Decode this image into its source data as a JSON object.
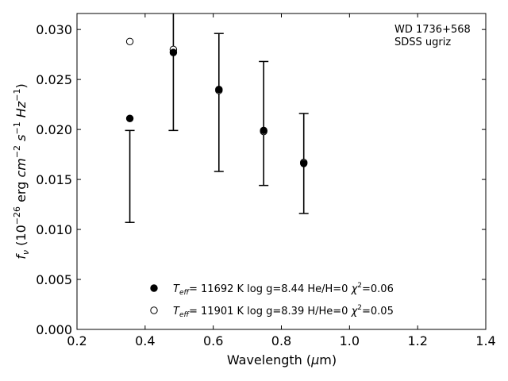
{
  "chart_data": {
    "type": "scatter",
    "xlabel": "Wavelength (μm)",
    "ylabel": "f_ν (10^-26 erg cm^-2 s^-1 Hz^-1)",
    "xlim": [
      0.2,
      1.4
    ],
    "ylim": [
      0.0,
      0.0316
    ],
    "xticks": [
      "0.2",
      "0.4",
      "0.6",
      "0.8",
      "1.0",
      "1.2",
      "1.4"
    ],
    "xtick_values": [
      0.2,
      0.4,
      0.6,
      0.8,
      1.0,
      1.2,
      1.4
    ],
    "yticks": [
      "0.000",
      "0.005",
      "0.010",
      "0.015",
      "0.020",
      "0.025",
      "0.030"
    ],
    "ytick_values": [
      0.0,
      0.005,
      0.01,
      0.015,
      0.02,
      0.025,
      0.03
    ],
    "grid": false,
    "annotation": [
      "WD 1736+568",
      "SDSS ugriz"
    ],
    "observed": {
      "x": [
        0.3551,
        0.4686,
        0.6166,
        0.748,
        0.8932
      ],
      "y": [
        0.0153,
        0.0279,
        0.0227,
        0.0206,
        0.0166
      ],
      "err": [
        0.0046,
        0.008,
        0.0069,
        0.0062,
        0.005
      ],
      "x_plot": [
        0.3551,
        0.4829,
        0.6166,
        0.748,
        0.8657
      ]
    },
    "series": [
      {
        "name": "T_eff= 11692 K  log g=8.44  He/H=0  χ²=0.06",
        "marker": "filled-circle",
        "x": [
          0.3551,
          0.4829,
          0.6166,
          0.748,
          0.8657
        ],
        "y": [
          0.0211,
          0.0277,
          0.024,
          0.0199,
          0.0166
        ]
      },
      {
        "name": "T_eff= 11901 K  log g=8.39  H/He=0  χ²=0.05",
        "marker": "open-circle",
        "x": [
          0.3551,
          0.4829,
          0.6166,
          0.748,
          0.8657
        ],
        "y": [
          0.0288,
          0.028,
          0.0239,
          0.0198,
          0.0167
        ]
      }
    ],
    "legend_position": "lower-center"
  }
}
